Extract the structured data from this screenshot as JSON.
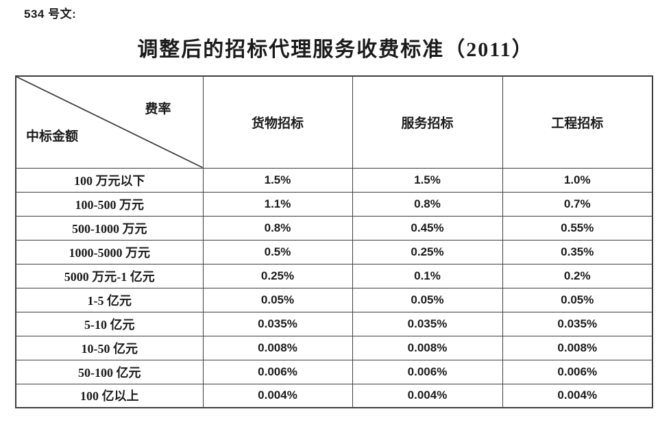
{
  "page": {
    "doc_label": "534 号文:",
    "title": "调整后的招标代理服务收费标准（2011）"
  },
  "table": {
    "corner": {
      "top_right": "费率",
      "bottom_left": "中标金额"
    },
    "columns": [
      "货物招标",
      "服务招标",
      "工程招标"
    ],
    "rows": [
      {
        "amount": "100 万元以下",
        "goods": "1.5%",
        "service": "1.5%",
        "engineering": "1.0%"
      },
      {
        "amount": "100-500 万元",
        "goods": "1.1%",
        "service": "0.8%",
        "engineering": "0.7%"
      },
      {
        "amount": "500-1000 万元",
        "goods": "0.8%",
        "service": "0.45%",
        "engineering": "0.55%"
      },
      {
        "amount": "1000-5000 万元",
        "goods": "0.5%",
        "service": "0.25%",
        "engineering": "0.35%"
      },
      {
        "amount": "5000 万元-1 亿元",
        "goods": "0.25%",
        "service": "0.1%",
        "engineering": "0.2%"
      },
      {
        "amount": "1-5 亿元",
        "goods": "0.05%",
        "service": "0.05%",
        "engineering": "0.05%"
      },
      {
        "amount": "5-10 亿元",
        "goods": "0.035%",
        "service": "0.035%",
        "engineering": "0.035%"
      },
      {
        "amount": "10-50 亿元",
        "goods": "0.008%",
        "service": "0.008%",
        "engineering": "0.008%"
      },
      {
        "amount": "50-100 亿元",
        "goods": "0.006%",
        "service": "0.006%",
        "engineering": "0.006%"
      },
      {
        "amount": "100 亿以上",
        "goods": "0.004%",
        "service": "0.004%",
        "engineering": "0.004%"
      }
    ]
  },
  "colors": {
    "border": "#3e3e3e",
    "text": "#1b1b1b",
    "background": "#ffffff"
  }
}
